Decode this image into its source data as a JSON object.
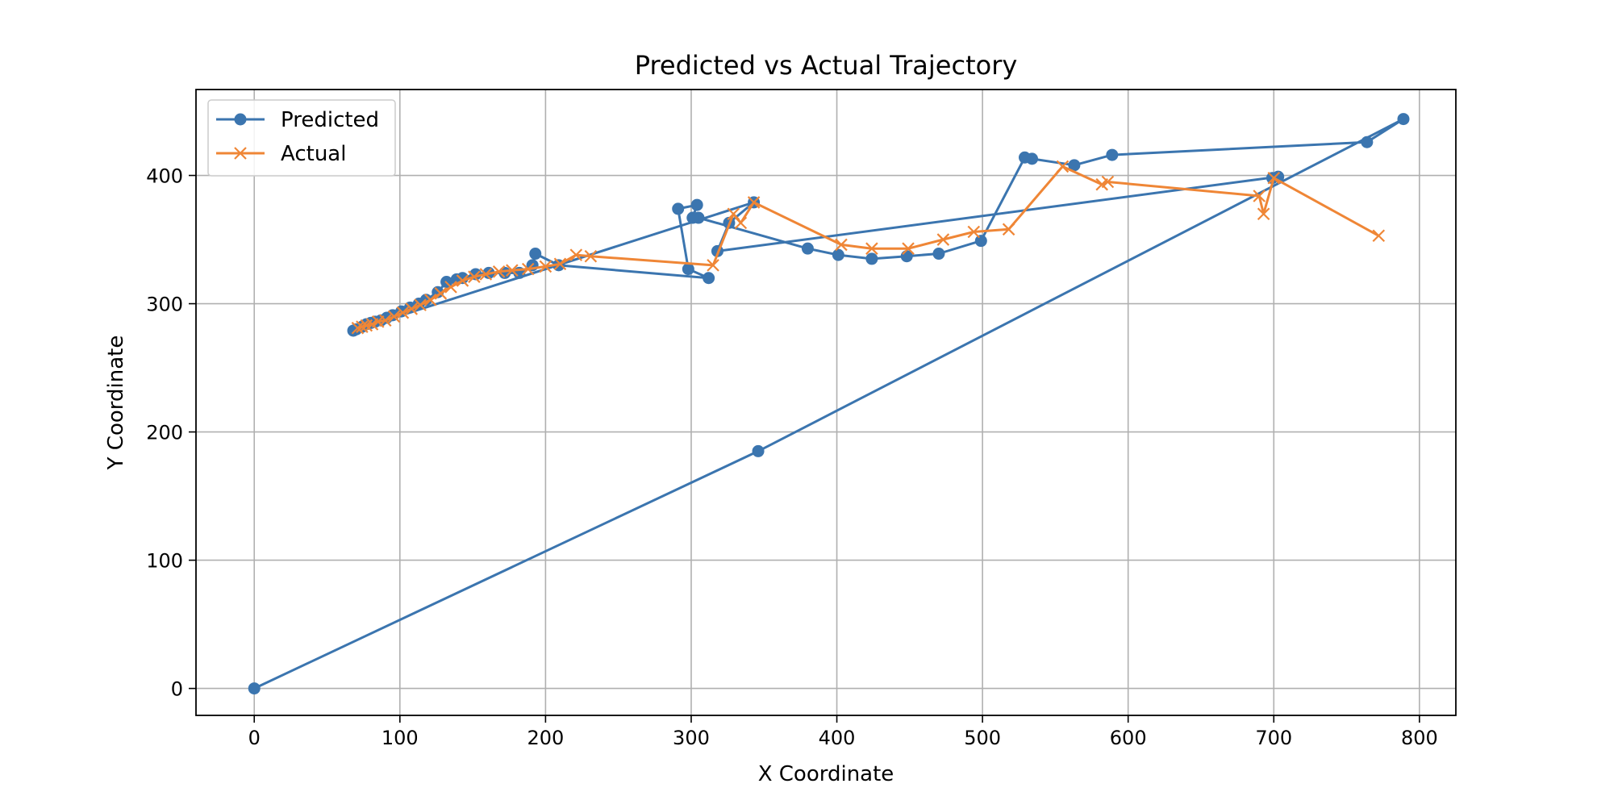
{
  "chart_data": {
    "type": "line",
    "title": "Predicted vs Actual Trajectory",
    "xlabel": "X Coordinate",
    "ylabel": "Y Coordinate",
    "xlim": [
      -40,
      825
    ],
    "ylim": [
      -21,
      467
    ],
    "xticks": [
      0,
      100,
      200,
      300,
      400,
      500,
      600,
      700,
      800
    ],
    "yticks": [
      0,
      100,
      200,
      300,
      400
    ],
    "grid": true,
    "legend_position": "top-left",
    "series": [
      {
        "name": "Predicted",
        "color": "#3b75af",
        "marker": "circle",
        "points": [
          [
            0,
            0
          ],
          [
            346,
            185
          ],
          [
            789,
            444
          ],
          [
            764,
            426
          ],
          [
            589,
            416
          ],
          [
            563,
            408
          ],
          [
            534,
            413
          ],
          [
            529,
            414
          ],
          [
            499,
            349
          ],
          [
            470,
            339
          ],
          [
            448,
            337
          ],
          [
            424,
            335
          ],
          [
            401,
            338
          ],
          [
            380,
            343
          ],
          [
            305,
            367
          ],
          [
            301,
            367
          ],
          [
            304,
            377
          ],
          [
            291,
            374
          ],
          [
            298,
            327
          ],
          [
            312,
            320
          ],
          [
            209,
            330
          ],
          [
            193,
            339
          ],
          [
            191,
            330
          ],
          [
            182,
            324
          ],
          [
            172,
            324
          ],
          [
            161,
            324
          ],
          [
            152,
            323
          ],
          [
            143,
            320
          ],
          [
            139,
            319
          ],
          [
            132,
            317
          ],
          [
            126,
            309
          ],
          [
            118,
            303
          ],
          [
            113,
            300
          ],
          [
            107,
            297
          ],
          [
            101,
            294
          ],
          [
            95,
            291
          ],
          [
            91,
            289
          ],
          [
            87,
            287
          ],
          [
            83,
            286
          ],
          [
            80,
            285
          ],
          [
            77,
            284
          ],
          [
            74,
            282
          ],
          [
            70,
            280
          ],
          [
            68,
            279
          ],
          [
            343,
            379
          ],
          [
            326,
            363
          ],
          [
            318,
            341
          ],
          [
            703,
            399
          ],
          [
            699,
            398
          ]
        ]
      },
      {
        "name": "Actual",
        "color": "#ef8636",
        "marker": "x",
        "points": [
          [
            71,
            281
          ],
          [
            74,
            282
          ],
          [
            77,
            283
          ],
          [
            81,
            284
          ],
          [
            85,
            286
          ],
          [
            90,
            287
          ],
          [
            96,
            290
          ],
          [
            102,
            293
          ],
          [
            108,
            296
          ],
          [
            114,
            299
          ],
          [
            121,
            303
          ],
          [
            128,
            308
          ],
          [
            135,
            313
          ],
          [
            143,
            318
          ],
          [
            151,
            321
          ],
          [
            159,
            323
          ],
          [
            168,
            325
          ],
          [
            177,
            326
          ],
          [
            188,
            327
          ],
          [
            200,
            329
          ],
          [
            210,
            331
          ],
          [
            221,
            338
          ],
          [
            231,
            337
          ],
          [
            315,
            330
          ],
          [
            329,
            370
          ],
          [
            334,
            363
          ],
          [
            343,
            379
          ],
          [
            403,
            346
          ],
          [
            424,
            343
          ],
          [
            449,
            343
          ],
          [
            473,
            350
          ],
          [
            494,
            356
          ],
          [
            518,
            358
          ],
          [
            555,
            407
          ],
          [
            582,
            393
          ],
          [
            586,
            395
          ],
          [
            690,
            384
          ],
          [
            693,
            370
          ],
          [
            700,
            398
          ],
          [
            772,
            353
          ]
        ]
      }
    ]
  }
}
